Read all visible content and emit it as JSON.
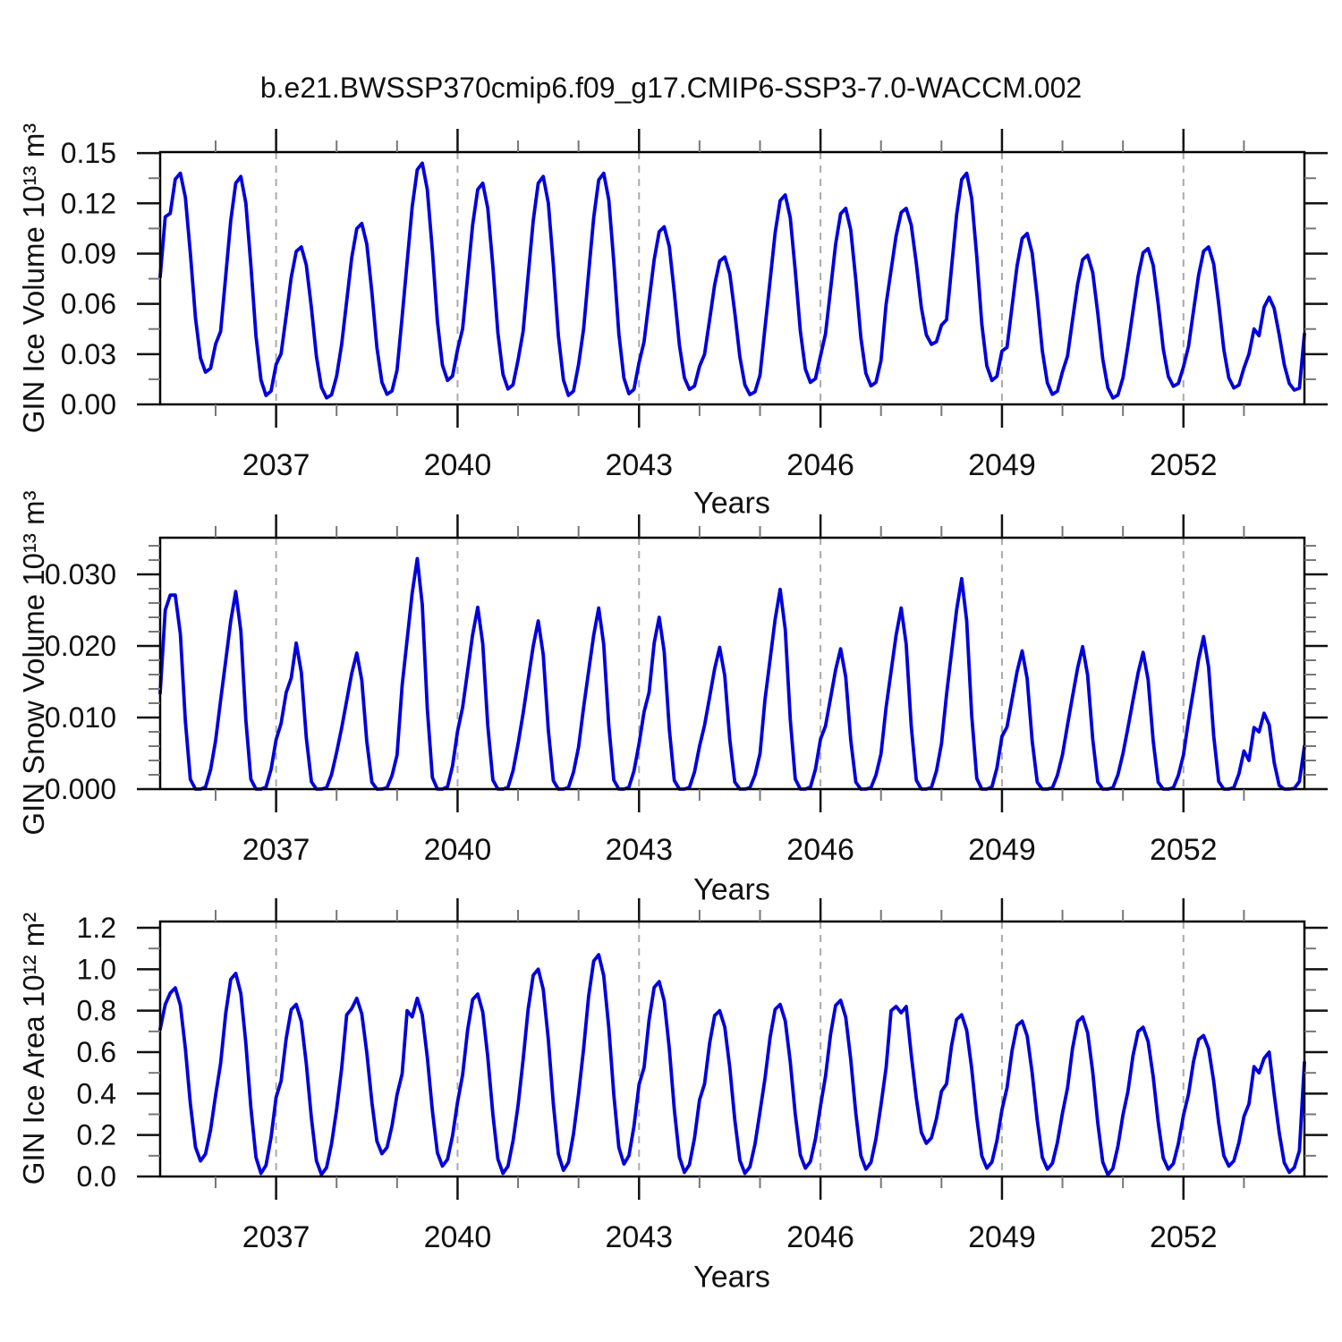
{
  "title": "b.e21.BWSSP370cmip6.f09_g17.CMIP6-SSP3-7.0-WACCM.002",
  "line_color": "#0000dd",
  "grid_color": "#aaaaaa",
  "frame_color": "#000000",
  "chart_data": [
    {
      "type": "line",
      "name": "gin-ice-volume",
      "title": "",
      "ylabel": "GIN Ice Volume 10¹³ m³",
      "xlabel": "Years",
      "xlim": [
        2035.083,
        2054.0
      ],
      "ylim": [
        0,
        0.1506
      ],
      "xticks": [
        2037,
        2040,
        2043,
        2046,
        2049,
        2052
      ],
      "xminor_every_years": 1,
      "yticks": [
        0,
        0.03,
        0.06,
        0.09,
        0.12,
        0.15
      ],
      "ytick_labels": [
        "0.00",
        "0.03",
        "0.06",
        "0.09",
        "0.12",
        "0.15"
      ],
      "yminor_step": 0.015,
      "grid": "vertical-dashed",
      "legend": "none",
      "seasonal_shape": [
        0.3,
        0.55,
        0.8,
        0.97,
        1.0,
        0.88,
        0.6,
        0.28,
        0.08,
        0.01,
        0.03,
        0.15
      ],
      "annual": [
        {
          "year": 2035,
          "peak": 0.138,
          "trough": 0.018
        },
        {
          "year": 2036,
          "peak": 0.136,
          "trough": 0.004
        },
        {
          "year": 2037,
          "peak": 0.094,
          "trough": 0.003
        },
        {
          "year": 2038,
          "peak": 0.108,
          "trough": 0.005
        },
        {
          "year": 2039,
          "peak": 0.144,
          "trough": 0.013
        },
        {
          "year": 2040,
          "peak": 0.132,
          "trough": 0.008
        },
        {
          "year": 2041,
          "peak": 0.136,
          "trough": 0.004
        },
        {
          "year": 2042,
          "peak": 0.138,
          "trough": 0.005
        },
        {
          "year": 2043,
          "peak": 0.106,
          "trough": 0.008
        },
        {
          "year": 2044,
          "peak": 0.088,
          "trough": 0.005
        },
        {
          "year": 2045,
          "peak": 0.125,
          "trough": 0.012
        },
        {
          "year": 2046,
          "peak": 0.117,
          "trough": 0.01
        },
        {
          "year": 2047,
          "peak": 0.117,
          "trough": 0.035
        },
        {
          "year": 2048,
          "peak": 0.138,
          "trough": 0.013
        },
        {
          "year": 2049,
          "peak": 0.102,
          "trough": 0.005
        },
        {
          "year": 2050,
          "peak": 0.089,
          "trough": 0.003
        },
        {
          "year": 2051,
          "peak": 0.093,
          "trough": 0.01
        },
        {
          "year": 2052,
          "peak": 0.094,
          "trough": 0.009
        },
        {
          "year": 2053,
          "peak": 0.064,
          "trough": 0.008
        }
      ],
      "overrides": {
        "2035-1": 0.076,
        "2035-2": 0.112,
        "2053-1": 0.03,
        "2053-2": 0.045,
        "2053-3": 0.041,
        "2053-4": 0.058,
        "2053-5": 0.064,
        "2053-12": 0.042
      }
    },
    {
      "type": "line",
      "name": "gin-snow-volume",
      "title": "",
      "ylabel": "GIN Snow Volume 10¹³ m³",
      "xlabel": "Years",
      "xlim": [
        2035.083,
        2054.0
      ],
      "ylim": [
        0,
        0.03513
      ],
      "xticks": [
        2037,
        2040,
        2043,
        2046,
        2049,
        2052
      ],
      "xminor_every_years": 1,
      "yticks": [
        0,
        0.01,
        0.02,
        0.03
      ],
      "ytick_labels": [
        "0.000",
        "0.010",
        "0.020",
        "0.030"
      ],
      "yminor_step": 0.002,
      "grid": "vertical-dashed",
      "legend": "none",
      "seasonal_shape": [
        0.45,
        0.65,
        0.85,
        1.0,
        0.8,
        0.35,
        0.05,
        0.0,
        0.0,
        0.01,
        0.1,
        0.25
      ],
      "annual": [
        {
          "year": 2035,
          "peak": 0.0271,
          "trough": 0.0
        },
        {
          "year": 2036,
          "peak": 0.0276,
          "trough": 0.0
        },
        {
          "year": 2037,
          "peak": 0.0204,
          "trough": 0.0
        },
        {
          "year": 2038,
          "peak": 0.019,
          "trough": 0.0
        },
        {
          "year": 2039,
          "peak": 0.0322,
          "trough": 0.0
        },
        {
          "year": 2040,
          "peak": 0.0254,
          "trough": 0.0
        },
        {
          "year": 2041,
          "peak": 0.0235,
          "trough": 0.0
        },
        {
          "year": 2042,
          "peak": 0.0253,
          "trough": 0.0
        },
        {
          "year": 2043,
          "peak": 0.024,
          "trough": 0.0
        },
        {
          "year": 2044,
          "peak": 0.0198,
          "trough": 0.0
        },
        {
          "year": 2045,
          "peak": 0.0279,
          "trough": 0.0
        },
        {
          "year": 2046,
          "peak": 0.0196,
          "trough": 0.0
        },
        {
          "year": 2047,
          "peak": 0.0253,
          "trough": 0.0
        },
        {
          "year": 2048,
          "peak": 0.0294,
          "trough": 0.0
        },
        {
          "year": 2049,
          "peak": 0.0193,
          "trough": 0.0
        },
        {
          "year": 2050,
          "peak": 0.0199,
          "trough": 0.0
        },
        {
          "year": 2051,
          "peak": 0.0191,
          "trough": 0.0
        },
        {
          "year": 2052,
          "peak": 0.0213,
          "trough": 0.0
        },
        {
          "year": 2053,
          "peak": 0.0106,
          "trough": 0.0
        }
      ],
      "overrides": {
        "2035-1": 0.0134,
        "2035-2": 0.025,
        "2035-3": 0.0271,
        "2037-2": 0.0135,
        "2037-3": 0.0155,
        "2043-2": 0.0135,
        "2053-1": 0.004,
        "2053-2": 0.0086,
        "2053-3": 0.008,
        "2053-4": 0.0106,
        "2053-5": 0.009,
        "2053-12": 0.006
      }
    },
    {
      "type": "line",
      "name": "gin-ice-area",
      "title": "",
      "ylabel": "GIN Ice Area 10¹² m²",
      "xlabel": "Years",
      "xlim": [
        2035.083,
        2054.0
      ],
      "ylim": [
        0,
        1.2303
      ],
      "xticks": [
        2037,
        2040,
        2043,
        2046,
        2049,
        2052
      ],
      "xminor_every_years": 1,
      "yticks": [
        0,
        0.2,
        0.4,
        0.6,
        0.8,
        1.0,
        1.2
      ],
      "ytick_labels": [
        "0.0",
        "0.2",
        "0.4",
        "0.6",
        "0.8",
        "1.0",
        "1.2"
      ],
      "yminor_step": 0.1,
      "grid": "vertical-dashed",
      "legend": "none",
      "seasonal_shape": [
        0.55,
        0.8,
        0.97,
        1.0,
        0.9,
        0.65,
        0.33,
        0.08,
        0.0,
        0.04,
        0.18,
        0.38
      ],
      "annual": [
        {
          "year": 2035,
          "peak": 0.91,
          "trough": 0.075
        },
        {
          "year": 2036,
          "peak": 0.98,
          "trough": 0.015
        },
        {
          "year": 2037,
          "peak": 0.83,
          "trough": 0.01
        },
        {
          "year": 2038,
          "peak": 0.86,
          "trough": 0.11
        },
        {
          "year": 2039,
          "peak": 0.86,
          "trough": 0.05
        },
        {
          "year": 2040,
          "peak": 0.88,
          "trough": 0.015
        },
        {
          "year": 2041,
          "peak": 1.0,
          "trough": 0.03
        },
        {
          "year": 2042,
          "peak": 1.07,
          "trough": 0.06
        },
        {
          "year": 2043,
          "peak": 0.94,
          "trough": 0.02
        },
        {
          "year": 2044,
          "peak": 0.8,
          "trough": 0.015
        },
        {
          "year": 2045,
          "peak": 0.83,
          "trough": 0.04
        },
        {
          "year": 2046,
          "peak": 0.85,
          "trough": 0.035
        },
        {
          "year": 2047,
          "peak": 0.82,
          "trough": 0.16
        },
        {
          "year": 2048,
          "peak": 0.78,
          "trough": 0.04
        },
        {
          "year": 2049,
          "peak": 0.75,
          "trough": 0.035
        },
        {
          "year": 2050,
          "peak": 0.77,
          "trough": 0.008
        },
        {
          "year": 2051,
          "peak": 0.72,
          "trough": 0.035
        },
        {
          "year": 2052,
          "peak": 0.68,
          "trough": 0.05
        },
        {
          "year": 2053,
          "peak": 0.6,
          "trough": 0.02
        }
      ],
      "overrides": {
        "2035-1": 0.71,
        "2035-2": 0.83,
        "2038-2": 0.78,
        "2038-3": 0.81,
        "2038-4": 0.86,
        "2039-2": 0.8,
        "2039-3": 0.77,
        "2039-4": 0.86,
        "2047-2": 0.8,
        "2047-3": 0.82,
        "2047-4": 0.79,
        "2047-5": 0.82,
        "2053-1": 0.35,
        "2053-2": 0.53,
        "2053-3": 0.5,
        "2053-4": 0.57,
        "2053-5": 0.6,
        "2053-12": 0.55
      }
    }
  ]
}
